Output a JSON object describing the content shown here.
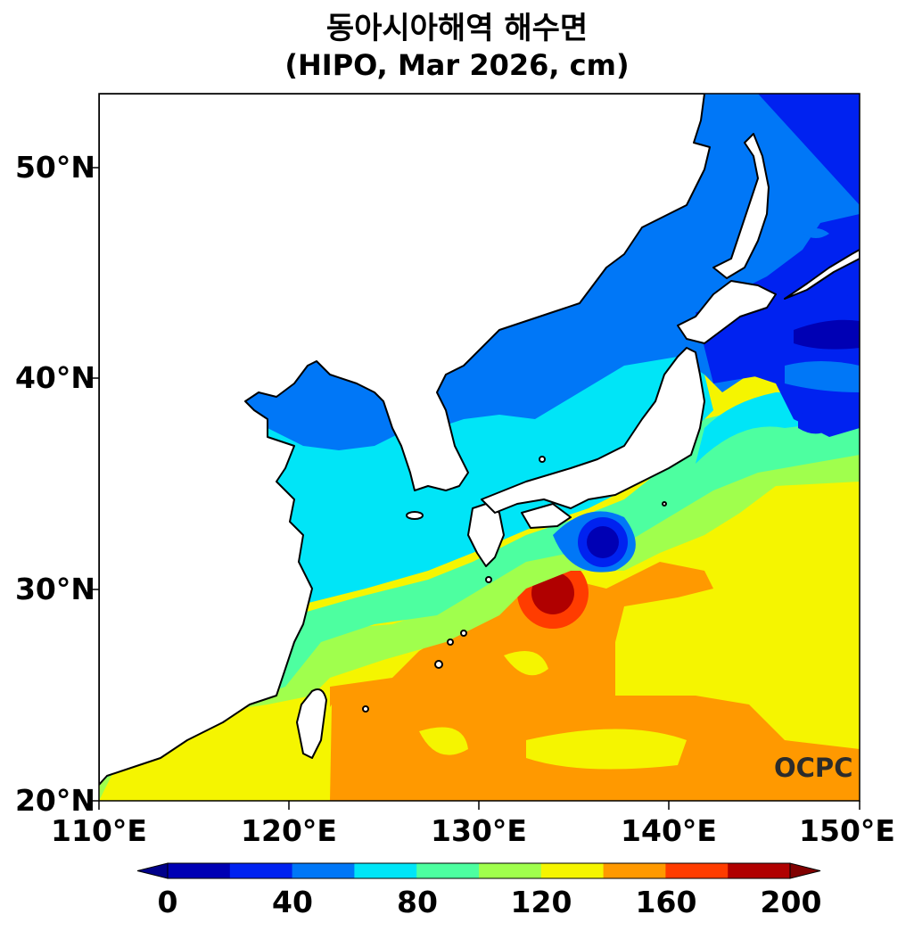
{
  "title": "동아시아해역 해수면",
  "subtitle": "(HIPO, Mar 2026, cm)",
  "lat_labels": [
    "50°N",
    "40°N",
    "30°N",
    "20°N"
  ],
  "lon_labels": [
    "110°E",
    "120°E",
    "130°E",
    "140°E",
    "150°E"
  ],
  "colorbar": {
    "labels": [
      "0",
      "40",
      "80",
      "120",
      "160",
      "200"
    ],
    "levels": [
      0,
      20,
      40,
      60,
      80,
      100,
      120,
      140,
      160,
      180,
      200
    ],
    "colors": [
      "#0000b4",
      "#0022f0",
      "#0077f7",
      "#00e5f7",
      "#4dffa0",
      "#a0ff4d",
      "#f5f500",
      "#ff9900",
      "#ff3c00",
      "#b00000"
    ],
    "under_color": "#00008a",
    "over_color": "#800000"
  },
  "logo": "OCPC",
  "map": {
    "lon_range": [
      110,
      150
    ],
    "lat_range": [
      20,
      53.5
    ],
    "land_color": "#ffffff",
    "coast_color": "#000000"
  }
}
